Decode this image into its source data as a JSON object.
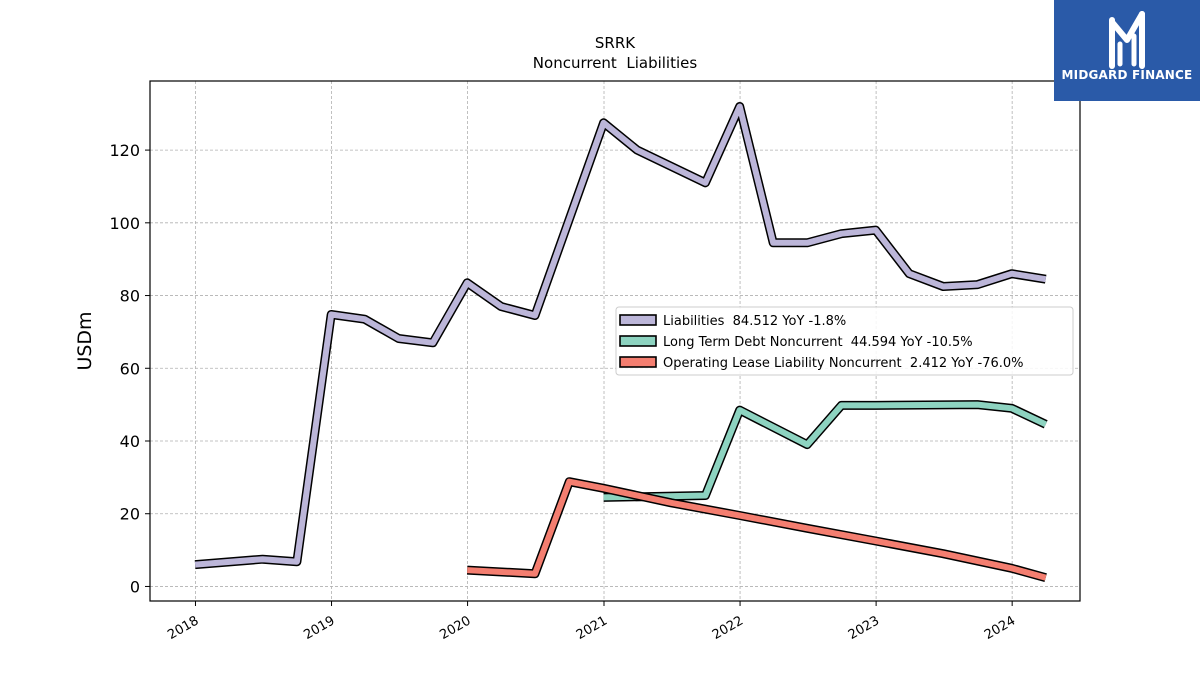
{
  "chart_data": {
    "type": "line",
    "title": "SRRK",
    "subtitle": "Noncurrent  Liabilities",
    "xlabel": "",
    "ylabel": "USDm",
    "x_ticks": [
      "2018",
      "2019",
      "2020",
      "2021",
      "2022",
      "2023",
      "2024"
    ],
    "y_ticks": [
      0,
      20,
      40,
      60,
      80,
      100,
      120
    ],
    "xlim": [
      "2017-09-01",
      "2024-07-01"
    ],
    "ylim": [
      -4,
      139
    ],
    "grid": true,
    "legend_position": "center-right",
    "series": [
      {
        "name": "Liabilities",
        "legend": "Liabilities  84.512 YoY -1.8%",
        "color": "#bcb6d9",
        "points": [
          [
            "2017-12-31",
            6.0
          ],
          [
            "2018-06-30",
            7.5
          ],
          [
            "2018-09-30",
            6.8
          ],
          [
            "2018-12-31",
            74.8
          ],
          [
            "2019-03-31",
            73.5
          ],
          [
            "2019-06-30",
            68.2
          ],
          [
            "2019-09-30",
            67.0
          ],
          [
            "2019-12-31",
            83.5
          ],
          [
            "2020-03-31",
            77.0
          ],
          [
            "2020-06-30",
            74.5
          ],
          [
            "2020-12-31",
            127.5
          ],
          [
            "2021-03-31",
            120.0
          ],
          [
            "2021-09-30",
            111.0
          ],
          [
            "2021-12-31",
            132.0
          ],
          [
            "2022-03-31",
            94.5
          ],
          [
            "2022-06-30",
            94.5
          ],
          [
            "2022-09-30",
            97.0
          ],
          [
            "2022-12-31",
            98.0
          ],
          [
            "2023-03-31",
            86.0
          ],
          [
            "2023-06-30",
            82.5
          ],
          [
            "2023-09-30",
            83.0
          ],
          [
            "2023-12-31",
            86.0
          ],
          [
            "2024-03-31",
            84.5
          ]
        ]
      },
      {
        "name": "Long Term Debt Noncurrent",
        "legend": "Long Term Debt Noncurrent  44.594 YoY -10.5%",
        "color": "#8dd3c0",
        "points": [
          [
            "2020-12-31",
            24.5
          ],
          [
            "2021-09-30",
            25.0
          ],
          [
            "2021-12-31",
            48.5
          ],
          [
            "2022-06-30",
            39.0
          ],
          [
            "2022-09-30",
            49.8
          ],
          [
            "2022-12-31",
            49.8
          ],
          [
            "2023-09-30",
            50.0
          ],
          [
            "2023-12-31",
            49.0
          ],
          [
            "2024-03-31",
            44.6
          ]
        ]
      },
      {
        "name": "Operating Lease Liability Noncurrent",
        "legend": "Operating Lease Liability Noncurrent  2.412 YoY -76.0%",
        "color": "#f47e70",
        "points": [
          [
            "2019-12-31",
            4.5
          ],
          [
            "2020-06-30",
            3.5
          ],
          [
            "2020-09-30",
            28.8
          ],
          [
            "2020-12-31",
            27.0
          ],
          [
            "2021-06-30",
            23.0
          ],
          [
            "2021-12-31",
            19.5
          ],
          [
            "2022-06-30",
            16.0
          ],
          [
            "2022-12-31",
            12.5
          ],
          [
            "2023-06-30",
            9.0
          ],
          [
            "2023-12-31",
            5.0
          ],
          [
            "2024-03-31",
            2.4
          ]
        ]
      }
    ]
  },
  "logo": {
    "text": "MIDGARD FINANCE"
  }
}
